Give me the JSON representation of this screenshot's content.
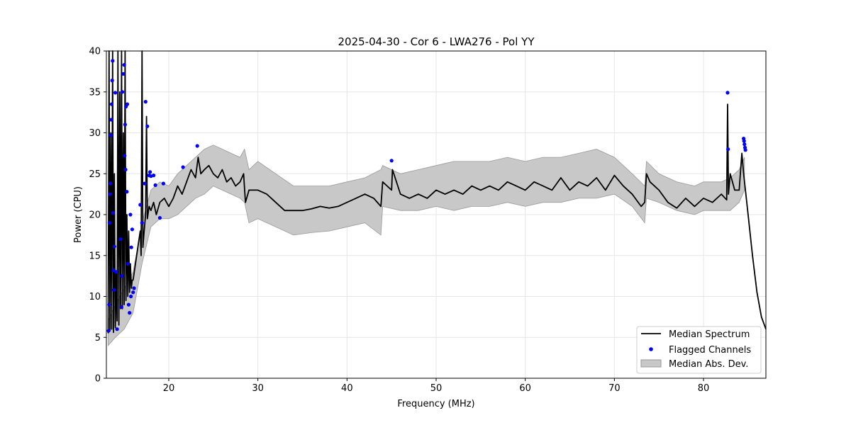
{
  "chart_data": {
    "type": "line",
    "title": "2025-04-30 - Cor 6 - LWA276 - Pol YY",
    "xlabel": "Frequency (MHz)",
    "ylabel": "Power (CPU)",
    "xlim": [
      13,
      87
    ],
    "ylim": [
      0,
      40
    ],
    "xticks": [
      20,
      30,
      40,
      50,
      60,
      70,
      80
    ],
    "yticks": [
      0,
      5,
      10,
      15,
      20,
      25,
      30,
      35,
      40
    ],
    "grid": true,
    "legend_position": "bottom-right",
    "colors": {
      "median": "#000000",
      "flagged": "#0000ff",
      "mad_fill": "#c8c8c8",
      "mad_edge": "#999999",
      "grid": "#e6e6e6"
    },
    "series": [
      {
        "name": "Median Spectrum",
        "kind": "line",
        "x": [
          13.2,
          13.3,
          13.4,
          13.5,
          13.6,
          13.7,
          13.8,
          13.9,
          14.0,
          14.1,
          14.2,
          14.3,
          14.4,
          14.5,
          14.6,
          14.7,
          14.8,
          14.9,
          15.0,
          15.1,
          15.2,
          15.3,
          15.4,
          15.5,
          15.6,
          15.7,
          15.8,
          15.9,
          16.0,
          16.2,
          16.4,
          16.6,
          16.8,
          16.9,
          17.0,
          17.1,
          17.2,
          17.4,
          17.5,
          17.6,
          17.8,
          18.0,
          18.3,
          18.6,
          19.0,
          19.5,
          20.0,
          20.5,
          21.0,
          21.5,
          22.0,
          22.5,
          23.0,
          23.3,
          23.6,
          24.0,
          24.5,
          25.0,
          25.5,
          26.0,
          26.5,
          27.0,
          27.5,
          28.0,
          28.4,
          28.6,
          29.0,
          30.0,
          31.0,
          32.0,
          33.0,
          34.0,
          35.0,
          36.0,
          37.0,
          38.0,
          39.0,
          40.0,
          41.0,
          42.0,
          43.0,
          43.8,
          44.0,
          45.0,
          45.1,
          46.0,
          47.0,
          48.0,
          49.0,
          50.0,
          51.0,
          52.0,
          53.0,
          54.0,
          55.0,
          56.0,
          57.0,
          58.0,
          59.0,
          60.0,
          61.0,
          62.0,
          63.0,
          64.0,
          65.0,
          66.0,
          67.0,
          68.0,
          69.0,
          70.0,
          71.0,
          72.0,
          73.0,
          73.4,
          73.6,
          74.0,
          75.0,
          76.0,
          77.0,
          78.0,
          79.0,
          80.0,
          81.0,
          82.0,
          82.6,
          82.7,
          82.8,
          83.0,
          83.5,
          84.0,
          84.3,
          84.5,
          85.0,
          85.5,
          86.0,
          86.5,
          87.0
        ],
        "y": [
          5.5,
          40,
          5.8,
          30,
          6.0,
          40,
          5.6,
          25,
          6.2,
          13,
          7.0,
          40,
          6.5,
          35,
          8.5,
          40,
          8.5,
          30,
          9.0,
          40,
          9.5,
          20,
          10.0,
          18,
          10.5,
          14,
          11.0,
          12,
          12.0,
          13.5,
          15.0,
          16.5,
          18.0,
          15.0,
          40,
          16.0,
          17.5,
          20.0,
          32.0,
          19.5,
          21.0,
          20.5,
          21.5,
          20.0,
          21.5,
          22.0,
          21.0,
          22.0,
          23.5,
          22.5,
          24.0,
          25.5,
          24.5,
          27.0,
          25.0,
          25.5,
          26.0,
          25.0,
          24.5,
          25.5,
          24.0,
          24.5,
          23.5,
          24.0,
          25.0,
          21.5,
          23.0,
          23.0,
          22.5,
          21.5,
          20.5,
          20.5,
          20.5,
          20.7,
          21.0,
          20.8,
          21.0,
          21.5,
          22.0,
          22.5,
          22.0,
          21.0,
          24.0,
          23.0,
          25.5,
          22.5,
          22.0,
          22.5,
          22.0,
          23.0,
          22.5,
          23.0,
          22.5,
          23.5,
          23.0,
          23.5,
          23.0,
          24.0,
          23.5,
          23.0,
          24.0,
          23.5,
          23.0,
          24.5,
          23.0,
          24.0,
          23.5,
          24.5,
          23.0,
          24.8,
          23.5,
          22.5,
          21.0,
          21.5,
          25.0,
          24.0,
          23.0,
          21.5,
          20.8,
          22.0,
          21.0,
          22.0,
          21.5,
          22.5,
          21.8,
          33.5,
          22.5,
          25.0,
          23.0,
          23.0,
          27.5,
          25.0,
          20.0,
          15.0,
          10.5,
          7.5,
          6.0
        ]
      },
      {
        "name": "Flagged Channels",
        "kind": "points",
        "x": [
          13.25,
          13.3,
          13.35,
          13.4,
          13.45,
          13.5,
          13.55,
          13.6,
          13.65,
          13.7,
          13.75,
          13.8,
          13.85,
          13.9,
          14.0,
          14.1,
          14.2,
          14.6,
          14.7,
          14.75,
          14.8,
          14.9,
          15.0,
          15.05,
          15.1,
          15.15,
          15.2,
          15.3,
          15.35,
          15.4,
          15.5,
          15.6,
          15.7,
          15.75,
          15.8,
          15.9,
          16.0,
          16.1,
          16.8,
          17.0,
          17.3,
          17.4,
          17.6,
          17.8,
          17.9,
          18.0,
          18.3,
          18.5,
          19.0,
          19.4,
          21.6,
          23.2,
          45.0,
          82.7,
          82.75,
          84.5,
          84.55,
          84.6,
          84.65,
          84.7
        ],
        "y": [
          5.8,
          9.0,
          19.0,
          22.5,
          23.8,
          29.7,
          31.6,
          33.5,
          36.4,
          38.8,
          20.2,
          13.2,
          10.8,
          16.1,
          34.9,
          13.0,
          6.0,
          17.0,
          8.7,
          12.5,
          35.0,
          37.2,
          38.3,
          27.2,
          31.0,
          25.5,
          33.2,
          22.8,
          33.5,
          14.0,
          9.0,
          8.0,
          20.0,
          10.0,
          16.0,
          18.2,
          10.5,
          11.0,
          21.2,
          19.0,
          23.8,
          33.8,
          30.8,
          24.8,
          25.2,
          24.7,
          24.8,
          23.6,
          19.6,
          23.8,
          25.8,
          28.4,
          26.6,
          34.9,
          28.0,
          29.3,
          29.0,
          28.6,
          28.2,
          27.9
        ]
      },
      {
        "name": "Median Abs. Dev.",
        "kind": "band",
        "x": [
          13.2,
          14.0,
          15.0,
          16.0,
          17.0,
          18.0,
          19.0,
          20.0,
          21.0,
          22.0,
          23.0,
          24.0,
          25.0,
          26.0,
          27.0,
          28.0,
          28.5,
          29.0,
          30.0,
          32.0,
          34.0,
          36.0,
          38.0,
          40.0,
          42.0,
          43.8,
          44.0,
          46.0,
          48.0,
          50.0,
          52.0,
          54.0,
          56.0,
          58.0,
          60.0,
          62.0,
          64.0,
          66.0,
          68.0,
          70.0,
          72.0,
          73.4,
          73.6,
          75.0,
          77.0,
          79.0,
          80.0,
          82.0,
          83.0,
          84.0,
          84.6
        ],
        "lower": [
          4.0,
          5.0,
          6.0,
          8.0,
          14.0,
          18.5,
          19.5,
          19.5,
          20.0,
          21.0,
          22.0,
          22.5,
          23.5,
          23.0,
          22.5,
          22.0,
          21.5,
          19.0,
          19.5,
          18.5,
          17.5,
          17.8,
          18.0,
          18.5,
          19.0,
          17.5,
          21.0,
          20.5,
          20.5,
          21.0,
          20.5,
          21.0,
          21.0,
          21.5,
          21.0,
          21.5,
          21.5,
          22.0,
          22.0,
          22.5,
          21.0,
          19.0,
          22.0,
          21.5,
          20.5,
          20.0,
          20.5,
          20.5,
          20.5,
          21.5,
          23.0
        ],
        "upper": [
          7.0,
          9.0,
          11.0,
          13.0,
          19.0,
          23.0,
          24.0,
          23.5,
          25.0,
          26.0,
          27.0,
          28.0,
          28.5,
          28.0,
          27.5,
          27.0,
          28.0,
          25.5,
          26.5,
          25.0,
          23.5,
          23.5,
          23.5,
          24.0,
          24.5,
          25.5,
          26.0,
          25.0,
          25.5,
          26.0,
          26.5,
          26.5,
          26.5,
          27.0,
          26.5,
          27.0,
          27.0,
          27.5,
          28.0,
          27.0,
          25.0,
          23.5,
          26.5,
          25.0,
          24.0,
          23.5,
          24.0,
          24.0,
          24.5,
          25.5,
          27.0
        ]
      }
    ]
  }
}
